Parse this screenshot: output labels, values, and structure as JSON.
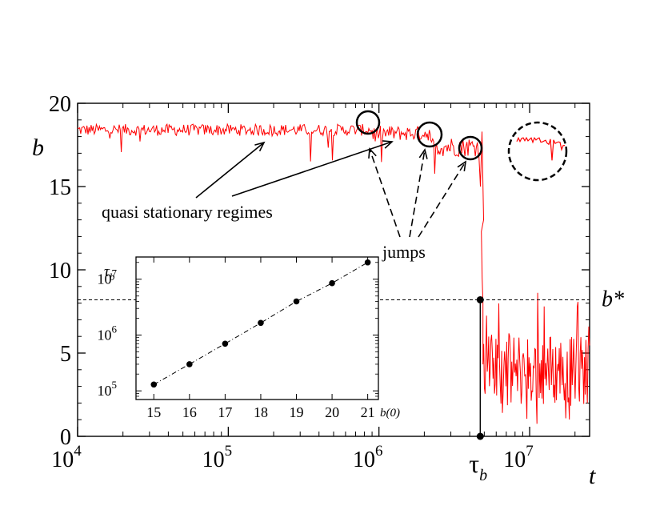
{
  "chart_data": [
    {
      "type": "line",
      "x_scale": "log",
      "xlim": [
        10000,
        25000000
      ],
      "ylim": [
        0,
        20
      ],
      "xlabel": "t",
      "ylabel": "b",
      "x_ticks": [
        {
          "value": 10000,
          "base": "10",
          "exp": "4"
        },
        {
          "value": 100000,
          "base": "10",
          "exp": "5"
        },
        {
          "value": 1000000,
          "base": "10",
          "exp": "6"
        },
        {
          "value": 10000000,
          "base": "10",
          "exp": "7"
        }
      ],
      "y_ticks": [
        {
          "value": 0,
          "label": "0"
        },
        {
          "value": 5,
          "label": "5"
        },
        {
          "value": 10,
          "label": "10"
        },
        {
          "value": 15,
          "label": "15"
        },
        {
          "value": 20,
          "label": "20"
        }
      ],
      "series": [
        {
          "color": "#ff0000",
          "segments": [
            {
              "regime": "stationary",
              "x_from": 10000,
              "x_to": 900000,
              "mean": 18.4,
              "noise": 0.35
            },
            {
              "regime": "stationary",
              "x_from": 900000,
              "x_to": 2200000,
              "mean": 18.2,
              "noise": 0.45
            },
            {
              "regime": "stationary",
              "x_from": 2200000,
              "x_to": 4600000,
              "mean": 17.4,
              "noise": 0.6
            },
            {
              "regime": "collapse",
              "x_from": 4600000,
              "x_to": 4900000,
              "from": 17.0,
              "to": 8.0
            },
            {
              "regime": "fluctuating",
              "x_from": 4900000,
              "x_to": 25000000,
              "low": 1.5,
              "high": 6.5,
              "noise": 2.2
            }
          ]
        }
      ],
      "threshold": {
        "label": "b*",
        "value": 8.2
      },
      "tau_b": {
        "label": "τ",
        "sub": "b",
        "value": 4700000
      },
      "annotations": {
        "quasi_label": "quasi stationary regimes",
        "jumps_label": "jumps"
      }
    },
    {
      "type": "scatter",
      "inset": true,
      "y_scale": "log",
      "xlabel": "b(0)",
      "ylabel": "τ",
      "ylabel_sub": "b",
      "xlim": [
        14.5,
        21.3
      ],
      "ylim": [
        70000,
        25000000
      ],
      "x_ticks": [
        "15",
        "16",
        "17",
        "18",
        "19",
        "20",
        "21"
      ],
      "y_ticks": [
        {
          "value": 100000,
          "base": "10",
          "exp": "5"
        },
        {
          "value": 1000000,
          "base": "10",
          "exp": "6"
        },
        {
          "value": 10000000,
          "base": "10",
          "exp": "7"
        }
      ],
      "x": [
        15,
        16,
        17,
        18,
        19,
        20,
        21
      ],
      "y": [
        130000,
        300000,
        700000,
        1650000,
        4000000,
        8500000,
        20000000
      ],
      "line_style": "dash-dot"
    }
  ]
}
